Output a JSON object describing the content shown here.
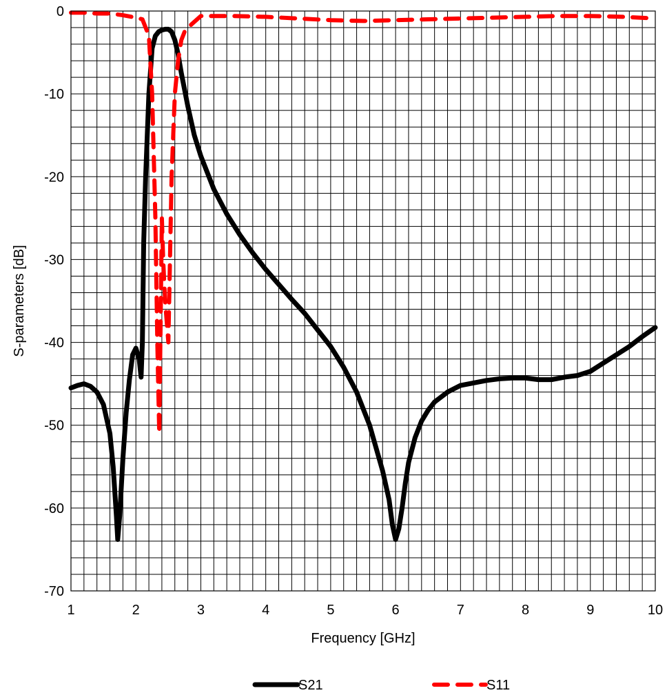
{
  "chart_data": {
    "type": "line",
    "title": "",
    "xlabel": "Frequency [GHz]",
    "ylabel": "S-parameters [dB]",
    "xlim": [
      1,
      10
    ],
    "ylim": [
      -70,
      0
    ],
    "x_ticks": [
      "1",
      "2",
      "3",
      "4",
      "5",
      "6",
      "7",
      "8",
      "9",
      "10"
    ],
    "y_ticks": [
      "0",
      "-10",
      "-20",
      "-30",
      "-40",
      "-50",
      "-60",
      "-70"
    ],
    "grid": true,
    "x_minor_per_major": 5,
    "y_minor_per_major": 5,
    "legend_position": "bottom",
    "series": [
      {
        "name": "S21",
        "color": "#000000",
        "style": "solid",
        "x": [
          1.0,
          1.1,
          1.2,
          1.3,
          1.4,
          1.5,
          1.6,
          1.65,
          1.7,
          1.72,
          1.75,
          1.8,
          1.85,
          1.9,
          1.95,
          2.0,
          2.05,
          2.08,
          2.1,
          2.12,
          2.15,
          2.2,
          2.25,
          2.3,
          2.35,
          2.4,
          2.45,
          2.5,
          2.55,
          2.6,
          2.65,
          2.7,
          2.8,
          2.9,
          3.0,
          3.2,
          3.4,
          3.6,
          3.8,
          4.0,
          4.2,
          4.4,
          4.6,
          4.8,
          5.0,
          5.2,
          5.4,
          5.6,
          5.8,
          5.9,
          5.95,
          6.0,
          6.05,
          6.1,
          6.15,
          6.2,
          6.3,
          6.4,
          6.5,
          6.6,
          6.8,
          7.0,
          7.2,
          7.4,
          7.6,
          7.8,
          8.0,
          8.2,
          8.4,
          8.6,
          8.8,
          9.0,
          9.2,
          9.4,
          9.6,
          9.8,
          10.0
        ],
        "y": [
          -45.5,
          -45.2,
          -45.0,
          -45.3,
          -46.0,
          -47.5,
          -51.0,
          -55.0,
          -61.0,
          -63.8,
          -61.0,
          -54.0,
          -48.5,
          -44.5,
          -41.5,
          -40.7,
          -42.0,
          -44.2,
          -40.0,
          -28.0,
          -20.0,
          -10.0,
          -4.5,
          -3.0,
          -2.5,
          -2.3,
          -2.2,
          -2.2,
          -2.5,
          -3.5,
          -5.2,
          -7.5,
          -11.5,
          -15.0,
          -17.5,
          -21.5,
          -24.5,
          -27.0,
          -29.2,
          -31.2,
          -33.0,
          -34.8,
          -36.5,
          -38.5,
          -40.5,
          -43.0,
          -46.0,
          -50.0,
          -55.5,
          -59.0,
          -62.0,
          -63.8,
          -62.5,
          -60.0,
          -57.0,
          -54.5,
          -51.5,
          -49.5,
          -48.2,
          -47.2,
          -46.0,
          -45.2,
          -44.9,
          -44.6,
          -44.4,
          -44.3,
          -44.3,
          -44.5,
          -44.5,
          -44.2,
          -44.0,
          -43.5,
          -42.5,
          -41.5,
          -40.5,
          -39.3,
          -38.2
        ]
      },
      {
        "name": "S11",
        "color": "#ff0000",
        "style": "dashed",
        "x": [
          1.0,
          1.2,
          1.4,
          1.6,
          1.8,
          2.0,
          2.1,
          2.2,
          2.25,
          2.3,
          2.33,
          2.36,
          2.38,
          2.4,
          2.42,
          2.45,
          2.5,
          2.55,
          2.6,
          2.65,
          2.7,
          2.75,
          2.8,
          3.0,
          3.5,
          4.0,
          4.5,
          5.0,
          5.5,
          6.0,
          6.5,
          7.0,
          7.5,
          8.0,
          8.5,
          9.0,
          9.5,
          10.0
        ],
        "y": [
          -0.2,
          -0.2,
          -0.3,
          -0.3,
          -0.5,
          -0.8,
          -1.0,
          -3.0,
          -10.0,
          -25.0,
          -40.0,
          -51.0,
          -38.0,
          -25.0,
          -30.0,
          -35.0,
          -40.0,
          -20.0,
          -10.0,
          -6.0,
          -3.5,
          -2.5,
          -2.0,
          -0.6,
          -0.6,
          -0.7,
          -0.9,
          -1.1,
          -1.2,
          -1.1,
          -1.0,
          -0.9,
          -0.8,
          -0.7,
          -0.6,
          -0.6,
          -0.7,
          -0.9
        ]
      }
    ]
  }
}
